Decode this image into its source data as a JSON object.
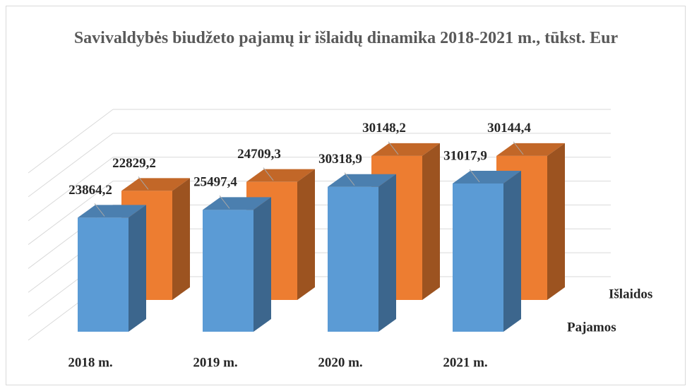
{
  "chart_data": {
    "type": "bar3d",
    "title": "Savivaldybės biudžeto pajamų ir išlaidų dinamika 2018-2021 m., tūkst. Eur",
    "categories": [
      "2018 m.",
      "2019 m.",
      "2020 m.",
      "2021 m."
    ],
    "series": [
      {
        "name": "Pajamos",
        "color": "#5b9bd5",
        "values": [
          23864.2,
          25497.4,
          30318.9,
          31017.9
        ],
        "value_labels": [
          "23864,2",
          "25497,4",
          "30318,9",
          "31017,9"
        ]
      },
      {
        "name": "Išlaidos",
        "color": "#ed7d31",
        "values": [
          22829.2,
          24709.3,
          30148.2,
          30144.4
        ],
        "value_labels": [
          "22829,2",
          "24709,3",
          "30148,2",
          "30144,4"
        ]
      }
    ],
    "ylim": [
      0,
      35000
    ],
    "yticks": [
      0,
      5000,
      10000,
      15000,
      20000,
      25000,
      30000,
      35000
    ],
    "grid": true
  }
}
